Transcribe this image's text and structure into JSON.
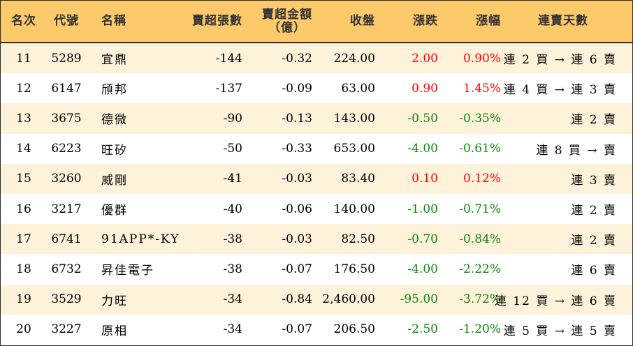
{
  "header": {
    "rank": "名次",
    "code": "代號",
    "name": "名稱",
    "net_sell_volume": "賣超張數",
    "net_sell_amount_line1": "賣超金額",
    "net_sell_amount_line2": "（億）",
    "close": "收盤",
    "change": "漲跌",
    "change_pct": "漲幅",
    "consecutive": "連賣天數"
  },
  "colors": {
    "header_bg": "#fcc96b",
    "odd_row_bg": "#fef2db",
    "up": "#ff0000",
    "down": "#0a8a0a"
  },
  "rows": [
    {
      "rank": "11",
      "code": "5289",
      "name": "宜鼎",
      "vol": "-144",
      "amt": "-0.32",
      "close": "224.00",
      "chg": "2.00",
      "pct": "0.90%",
      "dir": "up",
      "days": "連 2 買 → 連 6 賣"
    },
    {
      "rank": "12",
      "code": "6147",
      "name": "頎邦",
      "vol": "-137",
      "amt": "-0.09",
      "close": "63.00",
      "chg": "0.90",
      "pct": "1.45%",
      "dir": "up",
      "days": "連 4 買 → 連 3 賣"
    },
    {
      "rank": "13",
      "code": "3675",
      "name": "德微",
      "vol": "-90",
      "amt": "-0.13",
      "close": "143.00",
      "chg": "-0.50",
      "pct": "-0.35%",
      "dir": "down",
      "days": "連 2 賣"
    },
    {
      "rank": "14",
      "code": "6223",
      "name": "旺矽",
      "vol": "-50",
      "amt": "-0.33",
      "close": "653.00",
      "chg": "-4.00",
      "pct": "-0.61%",
      "dir": "down",
      "days": "連 8 買 → 賣"
    },
    {
      "rank": "15",
      "code": "3260",
      "name": "威剛",
      "vol": "-41",
      "amt": "-0.03",
      "close": "83.40",
      "chg": "0.10",
      "pct": "0.12%",
      "dir": "up",
      "days": "連 3 賣"
    },
    {
      "rank": "16",
      "code": "3217",
      "name": "優群",
      "vol": "-40",
      "amt": "-0.06",
      "close": "140.00",
      "chg": "-1.00",
      "pct": "-0.71%",
      "dir": "down",
      "days": "連 2 賣"
    },
    {
      "rank": "17",
      "code": "6741",
      "name": "91APP*-KY",
      "vol": "-38",
      "amt": "-0.03",
      "close": "82.50",
      "chg": "-0.70",
      "pct": "-0.84%",
      "dir": "down",
      "days": "連 2 賣"
    },
    {
      "rank": "18",
      "code": "6732",
      "name": "昇佳電子",
      "vol": "-38",
      "amt": "-0.07",
      "close": "176.50",
      "chg": "-4.00",
      "pct": "-2.22%",
      "dir": "down",
      "days": "連 6 賣"
    },
    {
      "rank": "19",
      "code": "3529",
      "name": "力旺",
      "vol": "-34",
      "amt": "-0.84",
      "close": "2,460.00",
      "chg": "-95.00",
      "pct": "-3.72%",
      "dir": "down",
      "days": "連 12 買 → 連 6 賣"
    },
    {
      "rank": "20",
      "code": "3227",
      "name": "原相",
      "vol": "-34",
      "amt": "-0.07",
      "close": "206.50",
      "chg": "-2.50",
      "pct": "-1.20%",
      "dir": "down",
      "days": "連 5 買 → 連 5 賣"
    }
  ]
}
